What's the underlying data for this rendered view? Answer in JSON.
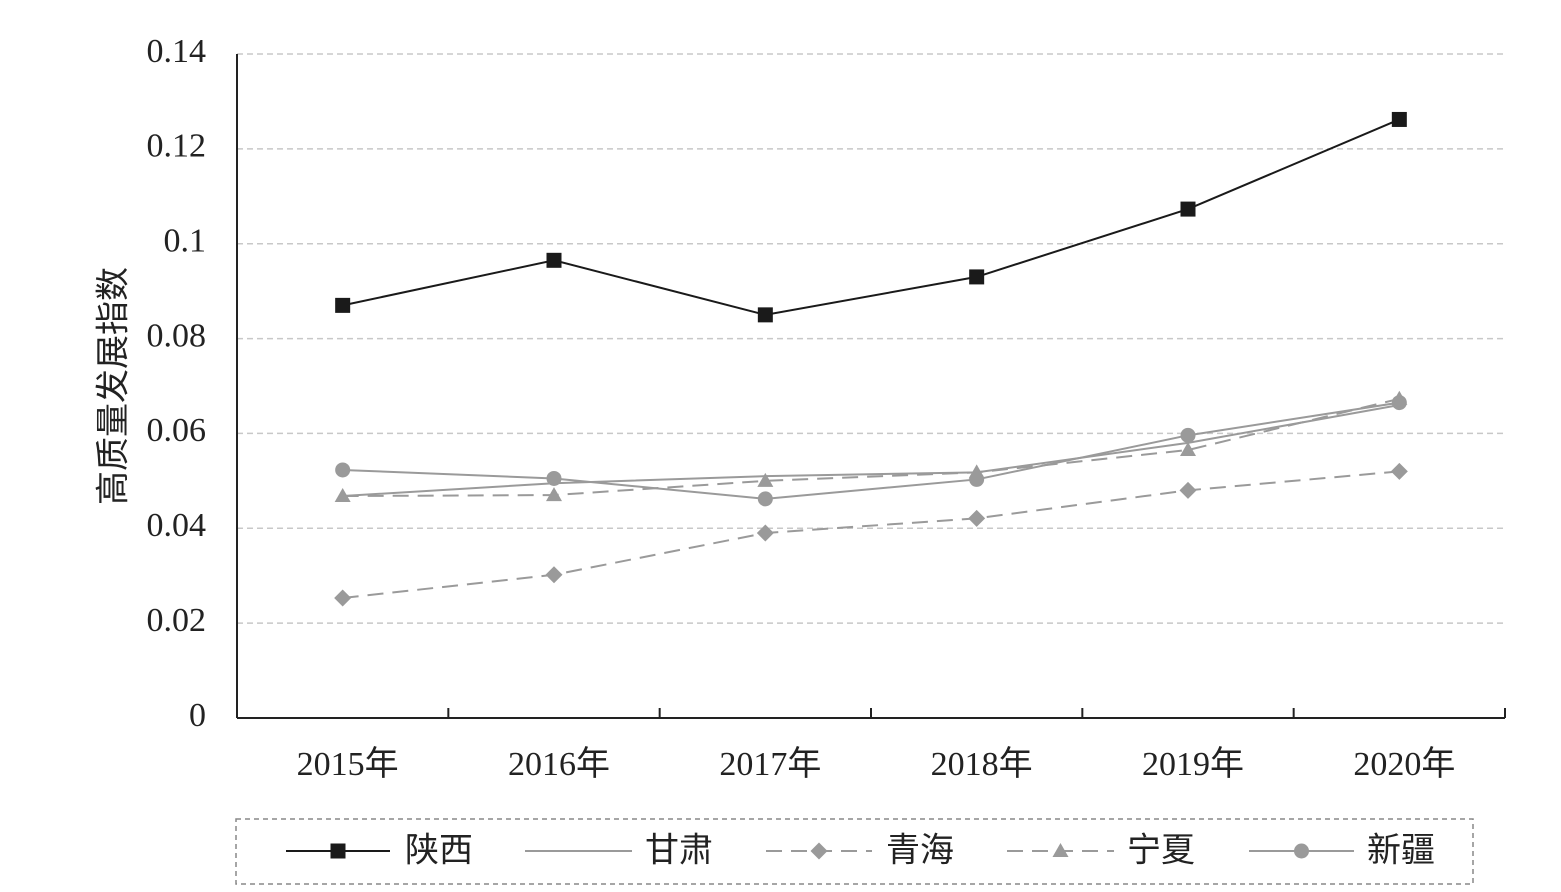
{
  "chart_data": {
    "type": "line",
    "title": "",
    "xlabel": "",
    "ylabel": "高质量发展指数",
    "categories": [
      "2015年",
      "2016年",
      "2017年",
      "2018年",
      "2019年",
      "2020年"
    ],
    "ylim": [
      0,
      0.14
    ],
    "yticks": [
      0,
      0.02,
      0.04,
      0.06,
      0.08,
      0.1,
      0.12,
      0.14
    ],
    "ytick_labels": [
      "0",
      "0.02",
      "0.04",
      "0.06",
      "0.08",
      "0.1",
      "0.12",
      "0.14"
    ],
    "grid": true,
    "legend_position": "bottom",
    "series": [
      {
        "name": "陕西",
        "values": [
          0.087,
          0.0965,
          0.085,
          0.093,
          0.1073,
          0.1262
        ],
        "color": "#1a1a1a",
        "dash": "solid",
        "marker": "square"
      },
      {
        "name": "甘肃",
        "values": [
          0.0468,
          0.0495,
          0.051,
          0.0518,
          0.058,
          0.066
        ],
        "color": "#9a9a9a",
        "dash": "solid",
        "marker": "none"
      },
      {
        "name": "青海",
        "values": [
          0.0253,
          0.0302,
          0.039,
          0.0421,
          0.048,
          0.052
        ],
        "color": "#9a9a9a",
        "dash": "dashed",
        "marker": "diamond"
      },
      {
        "name": "宁夏",
        "values": [
          0.0468,
          0.047,
          0.05,
          0.0518,
          0.0565,
          0.0673
        ],
        "color": "#9a9a9a",
        "dash": "dashed",
        "marker": "triangle"
      },
      {
        "name": "新疆",
        "values": [
          0.0523,
          0.0505,
          0.0462,
          0.0503,
          0.0596,
          0.0665
        ],
        "color": "#9a9a9a",
        "dash": "solid",
        "marker": "circle"
      }
    ]
  }
}
